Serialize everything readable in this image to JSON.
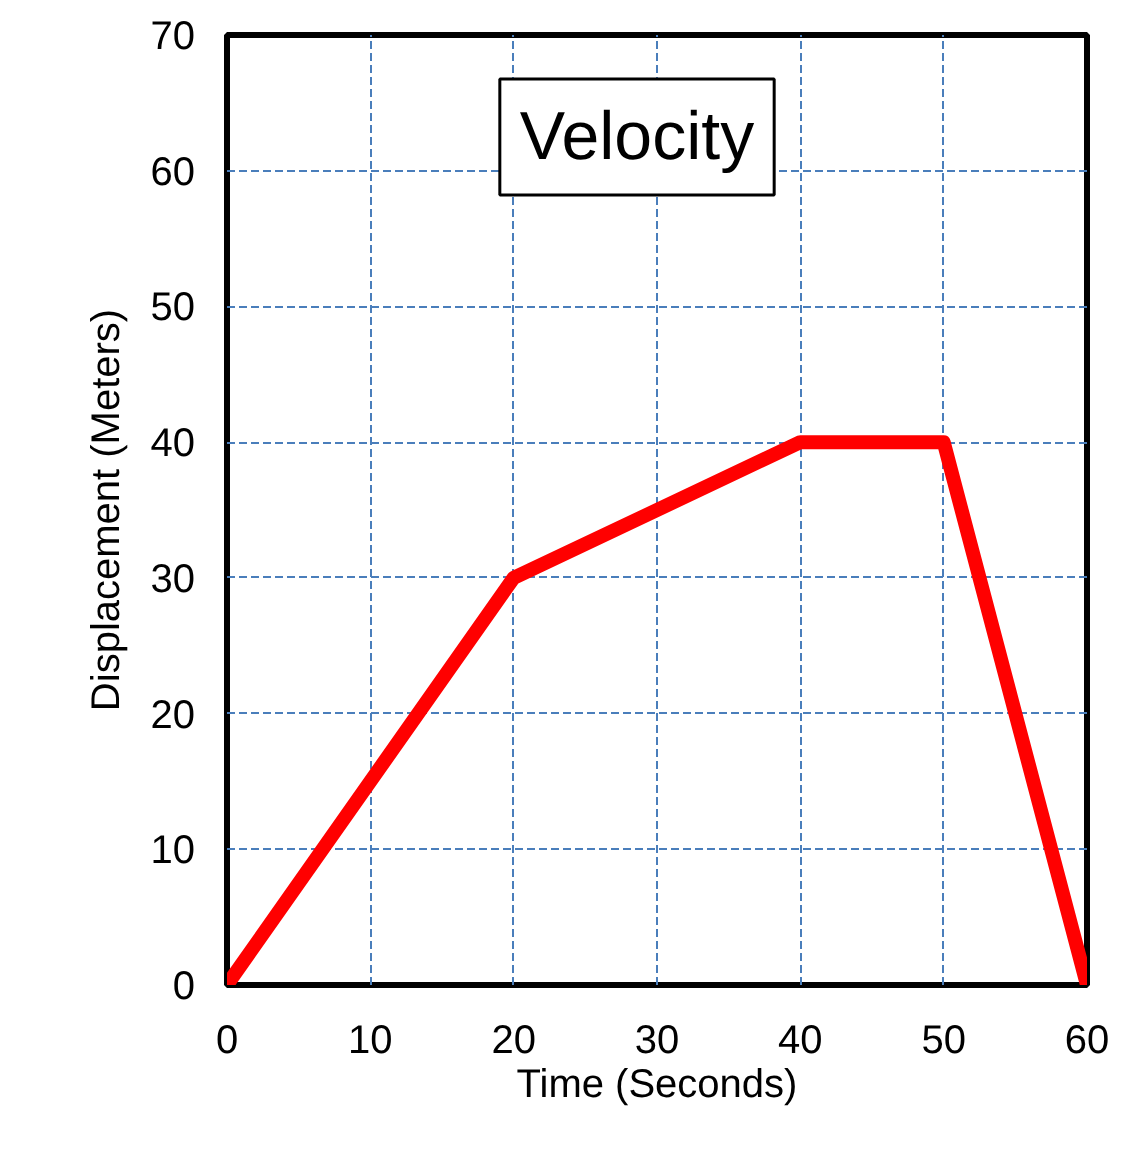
{
  "chart_data": {
    "type": "line",
    "title": "Velocity",
    "xlabel": "Time (Seconds)",
    "ylabel": "Displacement (Meters)",
    "x": [
      0,
      20,
      40,
      50,
      60
    ],
    "series": [
      {
        "color": "#ff0000",
        "values": [
          0,
          30,
          40,
          40,
          0
        ]
      }
    ],
    "xlim": [
      0,
      60
    ],
    "ylim": [
      0,
      70
    ],
    "xticks": [
      0,
      10,
      20,
      30,
      40,
      50,
      60
    ],
    "yticks": [
      0,
      10,
      20,
      30,
      40,
      50,
      60,
      70
    ],
    "grid": true,
    "line_style": "solid"
  }
}
